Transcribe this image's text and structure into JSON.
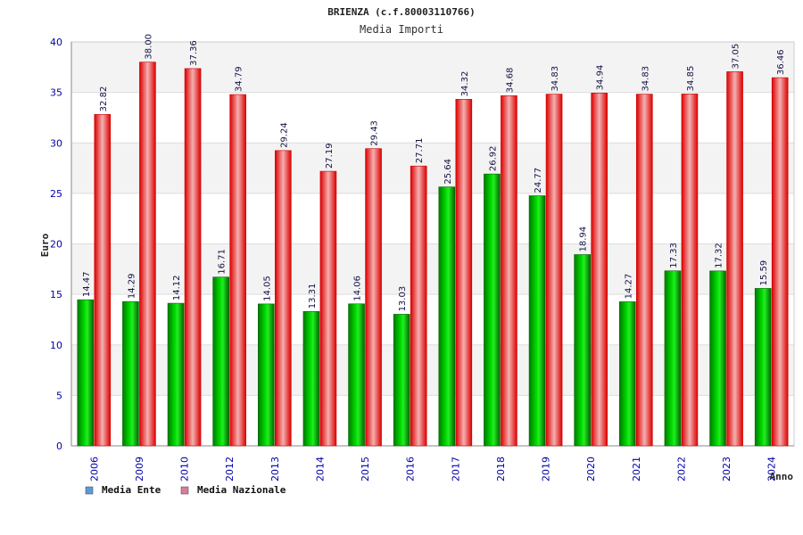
{
  "chart_data": {
    "type": "bar",
    "title": "BRIENZA (c.f.80003110766)",
    "subtitle": "Media Importi",
    "xlabel": "Anno",
    "ylabel": "Euro",
    "ylim": [
      0,
      40
    ],
    "yticks": [
      0,
      5,
      10,
      15,
      20,
      25,
      30,
      35,
      40
    ],
    "categories": [
      "2006",
      "2009",
      "2010",
      "2012",
      "2013",
      "2014",
      "2015",
      "2016",
      "2017",
      "2018",
      "2019",
      "2020",
      "2021",
      "2022",
      "2023",
      "2024"
    ],
    "series": [
      {
        "name": "Media Ente",
        "legend_color": "#5b9bd5",
        "color": "#00aa00",
        "values": [
          14.47,
          14.29,
          14.12,
          16.71,
          14.05,
          13.31,
          14.06,
          13.03,
          25.64,
          26.92,
          24.77,
          18.94,
          14.27,
          17.33,
          17.32,
          15.59
        ],
        "labels": [
          "14.47",
          "14.29",
          "14.12",
          "16.71",
          "14.05",
          "13.31",
          "14.06",
          "13.03",
          "25.64",
          "26.92",
          "24.77",
          "18.94",
          "14.27",
          "17.33",
          "17.32",
          "15.59"
        ]
      },
      {
        "name": "Media Nazionale",
        "legend_color": "#d97a9e",
        "color": "#ee1111",
        "values": [
          32.82,
          38.0,
          37.36,
          34.79,
          29.24,
          27.19,
          29.43,
          27.71,
          34.32,
          34.68,
          34.83,
          34.94,
          34.83,
          34.85,
          37.05,
          36.46
        ],
        "labels": [
          "32.82",
          "38.00",
          "37.36",
          "34.79",
          "29.24",
          "27.19",
          "29.43",
          "27.71",
          "34.32",
          "34.68",
          "34.83",
          "34.94",
          "34.83",
          "34.85",
          "37.05",
          "36.46"
        ]
      }
    ],
    "grid": true,
    "legend_position": "bottom-left"
  }
}
